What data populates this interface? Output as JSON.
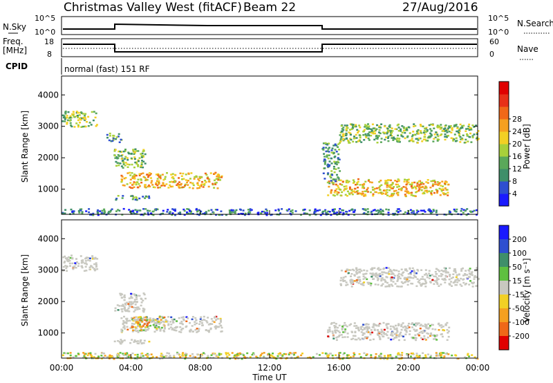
{
  "header": {
    "title": "Christmas Valley West (fitACF)",
    "beam": "Beam 22",
    "date": "27/Aug/2016"
  },
  "top_panels": {
    "nsky_label": "N.Sky",
    "nsky_ticks": [
      "10^5",
      "10^0"
    ],
    "nsearch_label": "N.Search",
    "nsearch_ticks": [
      "10^5",
      "10^0"
    ],
    "freq_label_1": "Freq.",
    "freq_label_2": "[MHz]",
    "freq_ticks": [
      "18",
      "8"
    ],
    "nave_label": "Nave",
    "nave_ticks": [
      "60",
      "0"
    ],
    "cpid_label": "CPID",
    "cpid_text": "normal (fast) 151 RF"
  },
  "chart_data": [
    {
      "type": "heatmap",
      "name": "power",
      "ylabel": "Slant Range [km]",
      "y_ticks": [
        "1000",
        "2000",
        "3000",
        "4000"
      ],
      "ylim": [
        200,
        4600
      ],
      "colorbar_label": "Power [dB]",
      "colorbar_ticks": [
        "4",
        "8",
        "12",
        "16",
        "20",
        "24",
        "28"
      ],
      "colorbar_colors": [
        "#1a1aff",
        "#2e4fd0",
        "#3f8f6a",
        "#5aa85a",
        "#a8d03a",
        "#f2d024",
        "#f5a020",
        "#f06818",
        "#e83018",
        "#e00000"
      ],
      "echoes": [
        {
          "t0": 0.0,
          "t1": 2.0,
          "r0": 3000,
          "r1": 3500,
          "level": "mid"
        },
        {
          "t0": 2.5,
          "t1": 3.5,
          "r0": 2500,
          "r1": 2800,
          "level": "low"
        },
        {
          "t0": 3.0,
          "t1": 4.8,
          "r0": 1700,
          "r1": 2300,
          "level": "mid"
        },
        {
          "t0": 3.4,
          "t1": 9.2,
          "r0": 1050,
          "r1": 1550,
          "level": "high"
        },
        {
          "t0": 3.0,
          "t1": 5.0,
          "r0": 680,
          "r1": 820,
          "level": "low"
        },
        {
          "t0": 15.3,
          "t1": 22.3,
          "r0": 800,
          "r1": 1350,
          "level": "high"
        },
        {
          "t0": 16.0,
          "t1": 24.0,
          "r0": 2500,
          "r1": 3100,
          "level": "mid"
        },
        {
          "t0": 15.0,
          "t1": 16.0,
          "r0": 1200,
          "r1": 2500,
          "level": "low"
        },
        {
          "t0": 0.0,
          "t1": 24.0,
          "r0": 200,
          "r1": 400,
          "level": "ground"
        }
      ]
    },
    {
      "type": "heatmap",
      "name": "velocity",
      "ylabel": "Slant Range [km]",
      "y_ticks": [
        "1000",
        "2000",
        "3000",
        "4000"
      ],
      "ylim": [
        200,
        4600
      ],
      "xlabel": "Time UT",
      "x_ticks": [
        "00:00",
        "04:00",
        "08:00",
        "12:00",
        "16:00",
        "20:00",
        "00:00"
      ],
      "colorbar_label": "Velocity [m s⁻¹]",
      "colorbar_ticks": [
        "200",
        "100",
        "50",
        "15",
        "-15",
        "-50",
        "-100",
        "-200"
      ],
      "colorbar_colors": [
        "#1a1aff",
        "#2e4fd0",
        "#3f8f6a",
        "#5fc040",
        "#c8c8c0",
        "#f2d024",
        "#f5a020",
        "#f06818",
        "#e00000"
      ],
      "echoes": [
        {
          "t0": 0.0,
          "t1": 2.0,
          "r0": 3000,
          "r1": 3500,
          "level": "gray"
        },
        {
          "t0": 3.0,
          "t1": 4.8,
          "r0": 1700,
          "r1": 2300,
          "level": "gray"
        },
        {
          "t0": 3.4,
          "t1": 9.2,
          "r0": 1050,
          "r1": 1550,
          "level": "gray"
        },
        {
          "t0": 4.0,
          "t1": 6.0,
          "r0": 1100,
          "r1": 1550,
          "level": "mixed"
        },
        {
          "t0": 3.0,
          "t1": 5.0,
          "r0": 680,
          "r1": 820,
          "level": "gray"
        },
        {
          "t0": 15.3,
          "t1": 22.3,
          "r0": 800,
          "r1": 1350,
          "level": "gray"
        },
        {
          "t0": 16.0,
          "t1": 24.0,
          "r0": 2500,
          "r1": 3100,
          "level": "gray"
        },
        {
          "t0": 0.0,
          "t1": 24.0,
          "r0": 200,
          "r1": 400,
          "level": "ground"
        }
      ]
    }
  ]
}
